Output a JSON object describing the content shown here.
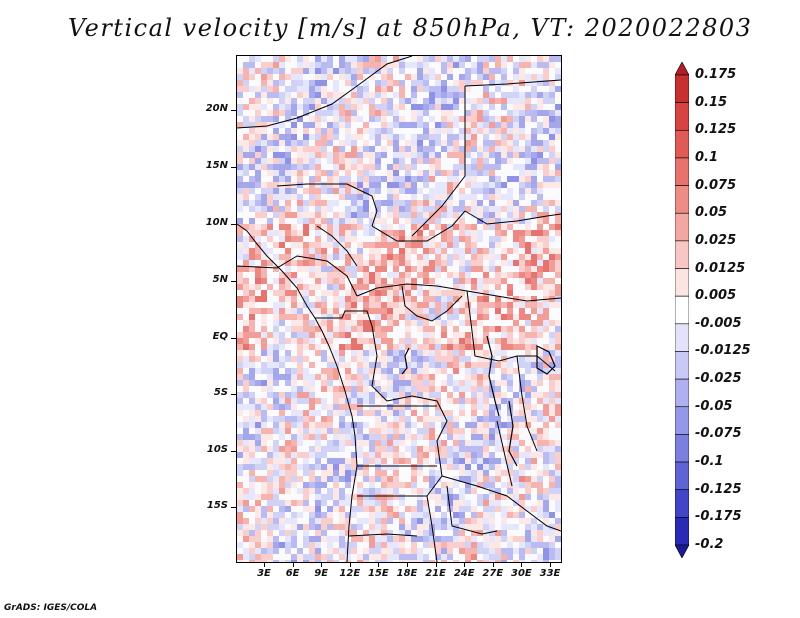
{
  "title": "Vertical velocity [m/s] at 850hPa, VT: 2020022803",
  "credit": "GrADS: IGES/COLA",
  "axes": {
    "lat_labels": [
      "20N",
      "15N",
      "10N",
      "5N",
      "EQ",
      "5S",
      "10S",
      "15S"
    ],
    "lon_labels": [
      "3E",
      "6E",
      "9E",
      "12E",
      "15E",
      "18E",
      "21E",
      "24E",
      "27E",
      "30E",
      "33E"
    ]
  },
  "colorbar": {
    "levels": [
      "0.175",
      "0.15",
      "0.125",
      "0.1",
      "0.075",
      "0.05",
      "0.025",
      "0.0125",
      "0.005",
      "-0.005",
      "-0.0125",
      "-0.025",
      "-0.05",
      "-0.075",
      "-0.1",
      "-0.125",
      "-0.175",
      "-0.2"
    ],
    "colors": [
      "#b11e26",
      "#c7302e",
      "#d64340",
      "#e05a56",
      "#e8736d",
      "#ee8c86",
      "#f3a7a2",
      "#f8c6c3",
      "#fce4e2",
      "#ffffff",
      "#e2e3fb",
      "#c8caf5",
      "#aeb0ef",
      "#9598e8",
      "#7b7fe0",
      "#5f63d6",
      "#4245c8",
      "#2a2bb4",
      "#1a1a99"
    ]
  }
}
